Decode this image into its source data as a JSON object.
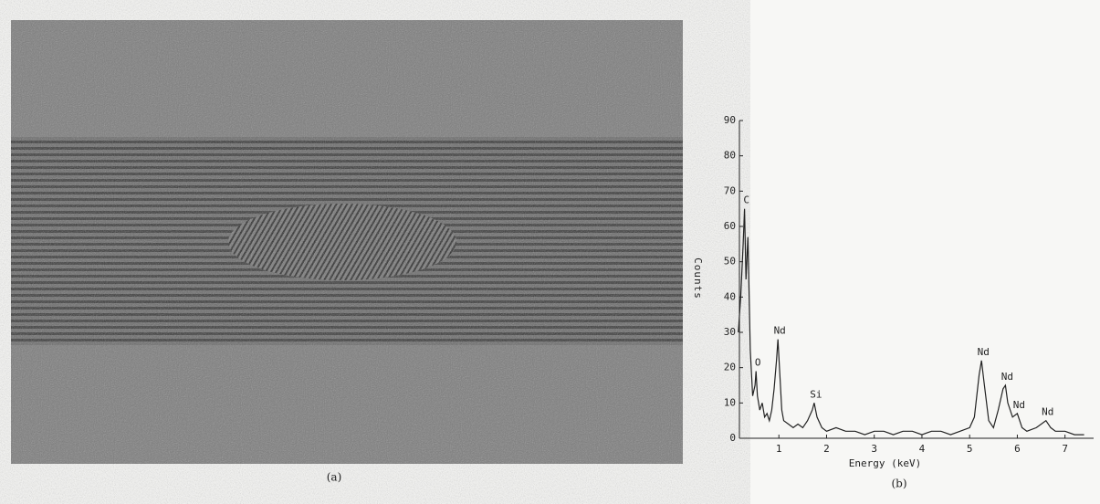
{
  "captions": [
    "(a)",
    "(b)"
  ],
  "chart_data": {
    "type": "line",
    "x_label": "Energy (keV)",
    "y_label": "Counts",
    "xlim": [
      0,
      7.6
    ],
    "ylim": [
      0,
      90
    ],
    "xticks": [
      1,
      2,
      3,
      4,
      5,
      6,
      7
    ],
    "yticks": [
      0,
      10,
      20,
      30,
      40,
      50,
      60,
      70,
      80,
      90
    ],
    "series": [
      {
        "color": "#222222",
        "x": [
          0.15,
          0.2,
          0.25,
          0.28,
          0.31,
          0.35,
          0.4,
          0.45,
          0.5,
          0.52,
          0.55,
          0.6,
          0.65,
          0.7,
          0.75,
          0.8,
          0.85,
          0.9,
          0.95,
          0.98,
          1.02,
          1.06,
          1.1,
          1.2,
          1.3,
          1.4,
          1.5,
          1.6,
          1.7,
          1.74,
          1.8,
          1.9,
          2.0,
          2.2,
          2.4,
          2.6,
          2.8,
          3.0,
          3.2,
          3.4,
          3.6,
          3.8,
          4.0,
          4.2,
          4.4,
          4.6,
          4.8,
          5.0,
          5.1,
          5.2,
          5.25,
          5.3,
          5.4,
          5.5,
          5.6,
          5.7,
          5.75,
          5.8,
          5.9,
          6.0,
          6.1,
          6.2,
          6.4,
          6.6,
          6.7,
          6.8,
          7.0,
          7.2,
          7.4
        ],
        "values": [
          30,
          40,
          55,
          65,
          45,
          57,
          25,
          12,
          15,
          19,
          12,
          8,
          10,
          6,
          7,
          5,
          8,
          14,
          22,
          28,
          18,
          8,
          5,
          4,
          3,
          4,
          3,
          5,
          8,
          10,
          6,
          3,
          2,
          3,
          2,
          2,
          1,
          2,
          2,
          1,
          2,
          2,
          1,
          2,
          2,
          1,
          2,
          3,
          6,
          18,
          22,
          16,
          5,
          3,
          8,
          14,
          15,
          10,
          6,
          7,
          3,
          2,
          3,
          5,
          3,
          2,
          2,
          1,
          1
        ]
      }
    ],
    "annotations": [
      {
        "text": "C",
        "x": 0.28,
        "y": 65
      },
      {
        "text": "O",
        "x": 0.52,
        "y": 19
      },
      {
        "text": "Nd",
        "x": 0.98,
        "y": 28
      },
      {
        "text": "Si",
        "x": 1.74,
        "y": 10
      },
      {
        "text": "Nd",
        "x": 5.25,
        "y": 22
      },
      {
        "text": "Nd",
        "x": 5.75,
        "y": 15
      },
      {
        "text": "Nd",
        "x": 6.0,
        "y": 7
      },
      {
        "text": "Nd",
        "x": 6.6,
        "y": 5
      }
    ]
  }
}
